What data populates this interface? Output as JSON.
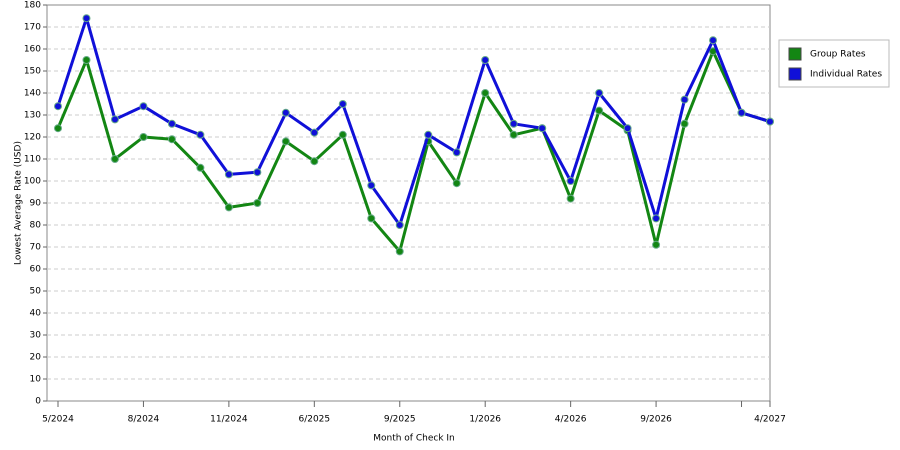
{
  "chart_data": {
    "type": "line",
    "x_label": "Month of Check In",
    "y_label": "Lowest Average Rate (USD)",
    "categories": [
      "5/2024",
      null,
      null,
      "8/2024",
      null,
      null,
      "11/2024",
      null,
      null,
      "6/2025",
      null,
      null,
      "9/2025",
      null,
      null,
      "1/2026",
      null,
      null,
      "4/2026",
      null,
      null,
      "9/2026",
      null,
      null,
      null,
      "4/2027"
    ],
    "series": [
      {
        "name": "Group Rates",
        "color": "#138613",
        "values": [
          124,
          155,
          110,
          120,
          119,
          106,
          88,
          90,
          118,
          109,
          121,
          83,
          68,
          118,
          99,
          140,
          121,
          124,
          92,
          132,
          123,
          71,
          126,
          159,
          131,
          127
        ]
      },
      {
        "name": "Individual Rates",
        "color": "#1010d8",
        "values": [
          134,
          174,
          128,
          134,
          126,
          121,
          103,
          104,
          131,
          122,
          135,
          98,
          80,
          121,
          113,
          155,
          126,
          124,
          100,
          140,
          124,
          83,
          137,
          164,
          131,
          127
        ]
      }
    ],
    "ylim": [
      0,
      180
    ],
    "yticks": [
      0,
      10,
      20,
      30,
      40,
      50,
      60,
      70,
      80,
      90,
      100,
      110,
      120,
      130,
      140,
      150,
      160,
      170,
      180
    ],
    "grid": true,
    "legend": "right"
  }
}
